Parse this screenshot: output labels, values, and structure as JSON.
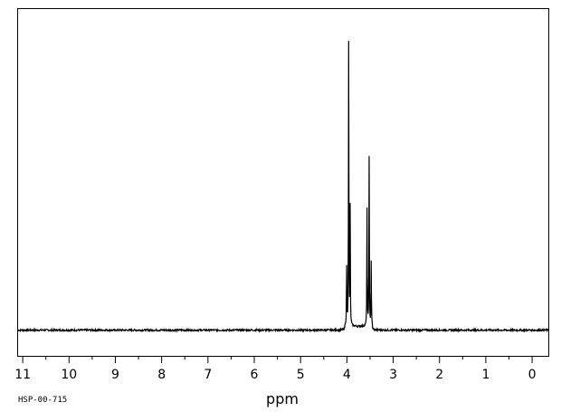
{
  "chart_data": {
    "type": "line",
    "title": "",
    "xlabel": "ppm",
    "ylabel": "",
    "xlim": [
      11.1,
      -0.35
    ],
    "x_reversed": true,
    "ylim": [
      -0.085,
      1.06
    ],
    "grid": false,
    "legend": "none",
    "x_ticks": [
      {
        "value": 11,
        "label": "11"
      },
      {
        "value": 10,
        "label": "10"
      },
      {
        "value": 9,
        "label": "9"
      },
      {
        "value": 8,
        "label": "8"
      },
      {
        "value": 7,
        "label": "7"
      },
      {
        "value": 6,
        "label": "6"
      },
      {
        "value": 5,
        "label": "5"
      },
      {
        "value": 4,
        "label": "4"
      },
      {
        "value": 3,
        "label": "3"
      },
      {
        "value": 2,
        "label": "2"
      },
      {
        "value": 1,
        "label": "1"
      },
      {
        "value": 0,
        "label": "0"
      }
    ],
    "baseline": 0.0,
    "peaks": [
      {
        "x": 4.005,
        "y": 0.215
      },
      {
        "x": 3.962,
        "y": 0.955
      },
      {
        "x": 3.93,
        "y": 0.42
      },
      {
        "x": 3.565,
        "y": 0.405
      },
      {
        "x": 3.52,
        "y": 0.575
      },
      {
        "x": 3.475,
        "y": 0.23
      }
    ]
  },
  "footer": {
    "code": "HSP-00-715"
  }
}
